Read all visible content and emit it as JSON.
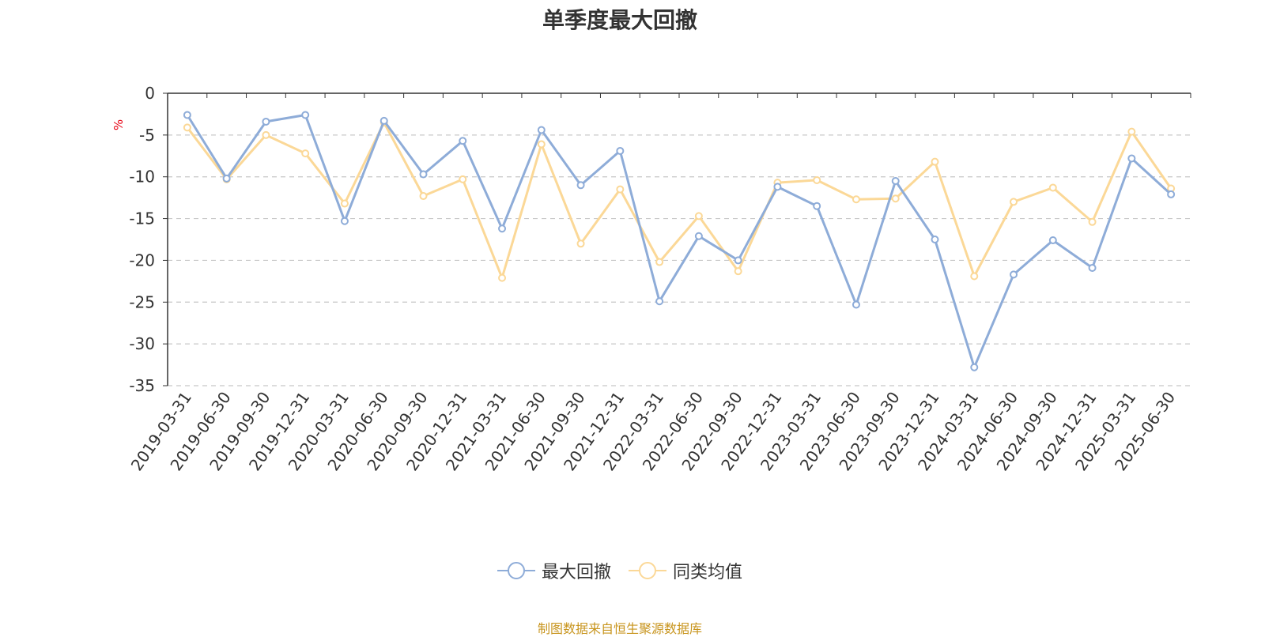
{
  "chart_data": {
    "type": "line",
    "title": "单季度最大回撤",
    "ylabel": "%",
    "ylim": [
      -35,
      0
    ],
    "yticks": [
      0,
      -5,
      -10,
      -15,
      -20,
      -25,
      -30,
      -35
    ],
    "grid": true,
    "legend_position": "bottom",
    "categories": [
      "2019-03-31",
      "2019-06-30",
      "2019-09-30",
      "2019-12-31",
      "2020-03-31",
      "2020-06-30",
      "2020-09-30",
      "2020-12-31",
      "2021-03-31",
      "2021-06-30",
      "2021-09-30",
      "2021-12-31",
      "2022-03-31",
      "2022-06-30",
      "2022-09-30",
      "2022-12-31",
      "2023-03-31",
      "2023-06-30",
      "2023-09-30",
      "2023-12-31",
      "2024-03-31",
      "2024-06-30",
      "2024-09-30",
      "2024-12-31",
      "2025-03-31",
      "2025-06-30"
    ],
    "series": [
      {
        "name": "最大回撤",
        "color": "#8eacd8",
        "values": [
          -2.6,
          -10.2,
          -3.4,
          -2.6,
          -15.3,
          -3.3,
          -9.7,
          -5.7,
          -16.2,
          -4.4,
          -11.0,
          -6.9,
          -24.9,
          -17.1,
          -20.0,
          -11.2,
          -13.5,
          -25.3,
          -10.5,
          -17.5,
          -32.8,
          -21.7,
          -17.6,
          -20.9,
          -7.8,
          -12.1
        ]
      },
      {
        "name": "同类均值",
        "color": "#fbd897",
        "values": [
          -4.1,
          -10.3,
          -5.0,
          -7.2,
          -13.2,
          -3.5,
          -12.3,
          -10.3,
          -22.1,
          -6.1,
          -18.0,
          -11.5,
          -20.2,
          -14.7,
          -21.3,
          -10.7,
          -10.4,
          -12.7,
          -12.6,
          -8.2,
          -21.9,
          -13.0,
          -11.3,
          -15.4,
          -4.6,
          -11.4
        ]
      }
    ]
  },
  "source_note": "制图数据来自恒生聚源数据库"
}
